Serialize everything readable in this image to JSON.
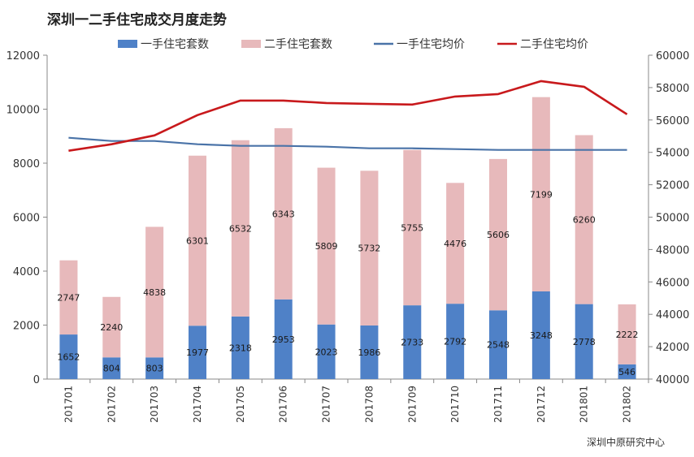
{
  "title": "深圳一二手住宅成交月度走势",
  "source": "深圳中原研究中心",
  "chart_data": {
    "type": "bar",
    "stacked": true,
    "categories": [
      "201701",
      "201702",
      "201703",
      "201704",
      "201705",
      "201706",
      "201707",
      "201708",
      "201709",
      "201710",
      "201711",
      "201712",
      "201801",
      "201802"
    ],
    "series": [
      {
        "name": "一手住宅套数",
        "type": "bar",
        "axis": "left",
        "color": "#4f81c7",
        "values": [
          1652,
          804,
          803,
          1977,
          2318,
          2953,
          2023,
          1986,
          2733,
          2792,
          2548,
          3248,
          2778,
          546
        ]
      },
      {
        "name": "二手住宅套数",
        "type": "bar",
        "axis": "left",
        "color": "#e7b9bb",
        "values": [
          2747,
          2240,
          4838,
          6301,
          6532,
          6343,
          5809,
          5732,
          5755,
          4476,
          5606,
          7199,
          6260,
          2222
        ]
      },
      {
        "name": "一手住宅均价",
        "type": "line",
        "axis": "right",
        "color": "#4a73a8",
        "values": [
          54900,
          54700,
          54700,
          54500,
          54400,
          54400,
          54350,
          54250,
          54250,
          54200,
          54150,
          54150,
          54150,
          54150
        ]
      },
      {
        "name": "二手住宅均价",
        "type": "line",
        "axis": "right",
        "color": "#c8191c",
        "values": [
          54100,
          54500,
          55050,
          56300,
          57200,
          57200,
          57050,
          57000,
          56950,
          57450,
          57600,
          58400,
          58050,
          56350
        ]
      }
    ],
    "y_left": {
      "min": 0,
      "max": 12000,
      "ticks": [
        0,
        2000,
        4000,
        6000,
        8000,
        10000,
        12000
      ]
    },
    "y_right": {
      "min": 40000,
      "max": 60000,
      "ticks": [
        40000,
        42000,
        44000,
        46000,
        48000,
        50000,
        52000,
        54000,
        56000,
        58000,
        60000
      ]
    },
    "legend_position": "top",
    "grid": false
  }
}
